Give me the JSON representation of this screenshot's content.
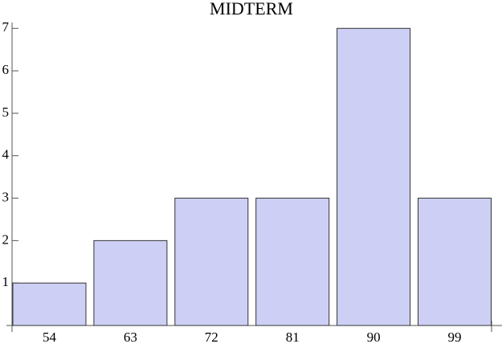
{
  "chart_data": {
    "type": "bar",
    "title": "MIDTERM",
    "categories": [
      "54",
      "63",
      "72",
      "81",
      "90",
      "99"
    ],
    "values": [
      1,
      2,
      3,
      3,
      7,
      3
    ],
    "color": "#cdd0f4",
    "ylim": [
      0,
      7.1
    ],
    "yticks": [
      1,
      2,
      3,
      4,
      5,
      6,
      7
    ]
  }
}
